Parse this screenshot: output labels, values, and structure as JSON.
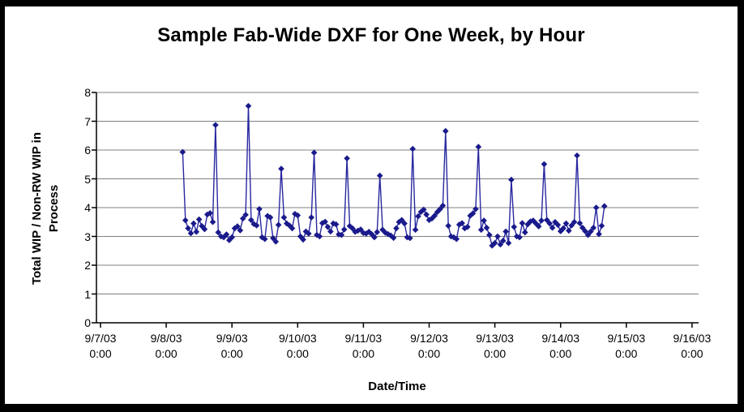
{
  "page": {
    "background": "#ffffff",
    "frame_color": "#000000"
  },
  "chart": {
    "title": "Sample Fab-Wide DXF for One Week, by Hour",
    "xlabel": "Date/Time",
    "ylabel": "Total WIP / Non-RW WIP in\nProcess"
  },
  "chart_data": {
    "type": "line",
    "title": "Sample Fab-Wide DXF for One Week, by Hour",
    "xlabel": "Date/Time",
    "ylabel": "Total WIP / Non-RW WIP in Process",
    "legend": "none",
    "grid": "horizontal",
    "ylim": [
      0,
      8
    ],
    "y_ticks": [
      0,
      1,
      2,
      3,
      4,
      5,
      6,
      7,
      8
    ],
    "x_axis_ticks": [
      {
        "date": "9/7/03",
        "time": "0:00"
      },
      {
        "date": "9/8/03",
        "time": "0:00"
      },
      {
        "date": "9/9/03",
        "time": "0:00"
      },
      {
        "date": "9/10/03",
        "time": "0:00"
      },
      {
        "date": "9/11/03",
        "time": "0:00"
      },
      {
        "date": "9/12/03",
        "time": "0:00"
      },
      {
        "date": "9/13/03",
        "time": "0:00"
      },
      {
        "date": "9/14/03",
        "time": "0:00"
      },
      {
        "date": "9/15/03",
        "time": "0:00"
      },
      {
        "date": "9/16/03",
        "time": "0:00"
      }
    ],
    "x_start": "9/8/03 6:00",
    "x_interval_hours": 1,
    "start_hour_offset": 30,
    "line_color": "#2828a0",
    "marker": "diamond",
    "marker_color": "#1a1a8c",
    "axis_color": "#000000",
    "gridline_color": "#808080",
    "values": [
      5.93,
      3.56,
      3.28,
      3.11,
      3.45,
      3.16,
      3.59,
      3.36,
      3.25,
      3.76,
      3.81,
      3.5,
      6.87,
      3.14,
      3.0,
      2.97,
      3.07,
      2.87,
      2.97,
      3.28,
      3.35,
      3.21,
      3.62,
      3.75,
      7.53,
      3.57,
      3.43,
      3.38,
      3.95,
      2.97,
      2.91,
      3.71,
      3.66,
      2.94,
      2.82,
      3.4,
      5.35,
      3.66,
      3.45,
      3.38,
      3.28,
      3.78,
      3.73,
      3.0,
      2.89,
      3.17,
      3.1,
      3.66,
      5.91,
      3.05,
      3.0,
      3.46,
      3.51,
      3.33,
      3.17,
      3.45,
      3.42,
      3.07,
      3.05,
      3.24,
      5.71,
      3.36,
      3.28,
      3.16,
      3.2,
      3.24,
      3.12,
      3.1,
      3.16,
      3.08,
      2.97,
      3.15,
      5.11,
      3.23,
      3.13,
      3.08,
      3.03,
      2.95,
      3.28,
      3.5,
      3.57,
      3.45,
      2.97,
      2.94,
      6.04,
      3.23,
      3.7,
      3.85,
      3.93,
      3.76,
      3.57,
      3.62,
      3.72,
      3.85,
      3.95,
      4.07,
      6.66,
      3.37,
      3.0,
      2.97,
      2.91,
      3.41,
      3.46,
      3.28,
      3.33,
      3.72,
      3.8,
      3.95,
      6.11,
      3.23,
      3.55,
      3.3,
      3.05,
      2.68,
      2.77,
      3.0,
      2.72,
      2.85,
      3.17,
      2.77,
      4.97,
      3.33,
      3.0,
      2.97,
      3.46,
      3.14,
      3.42,
      3.52,
      3.55,
      3.45,
      3.35,
      3.55,
      5.51,
      3.57,
      3.45,
      3.3,
      3.5,
      3.4,
      3.18,
      3.28,
      3.45,
      3.2,
      3.38,
      3.5,
      5.81,
      3.46,
      3.3,
      3.18,
      3.05,
      3.17,
      3.3,
      4.0,
      3.08,
      3.37,
      4.05
    ]
  }
}
